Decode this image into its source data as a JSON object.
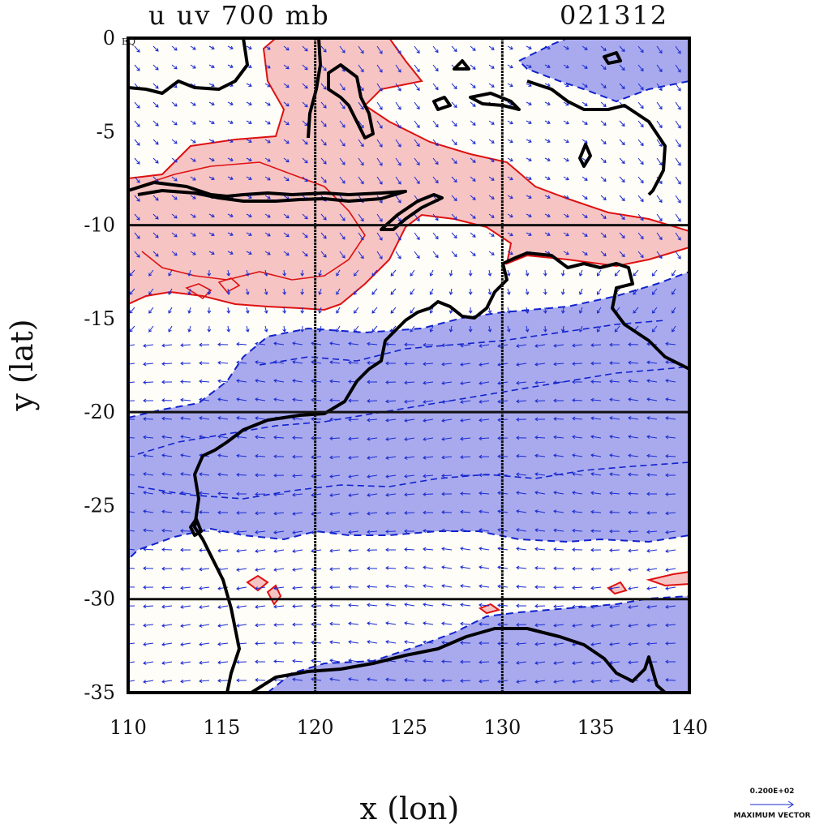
{
  "header": {
    "title": "u uv 700 mb",
    "date_code": "021312"
  },
  "chart_data": {
    "type": "map",
    "xlabel": "x (lon)",
    "ylabel": "y (lat)",
    "xlim": [
      110,
      140
    ],
    "ylim": [
      -35,
      0
    ],
    "x_ticks": [
      "110",
      "115",
      "120",
      "125",
      "130",
      "135",
      "140"
    ],
    "y_ticks": [
      "0",
      "-5",
      "-10",
      "-15",
      "-20",
      "-25",
      "-30",
      "-35"
    ],
    "y_top_annotation": "EQ",
    "grid_lines": {
      "lon": [
        120,
        130
      ],
      "lat": [
        -10,
        -20,
        -30
      ]
    },
    "vector_legend": {
      "value": "0.200E+02",
      "label": "MAXIMUM VECTOR"
    },
    "colors": {
      "positive_fill": "#f7c4c4",
      "positive_contour": "#dd1111",
      "negative_fill": "#a9aaee",
      "negative_contour": "#1122cc",
      "coastline": "#000000",
      "vectors": "#1a2bd0"
    }
  }
}
